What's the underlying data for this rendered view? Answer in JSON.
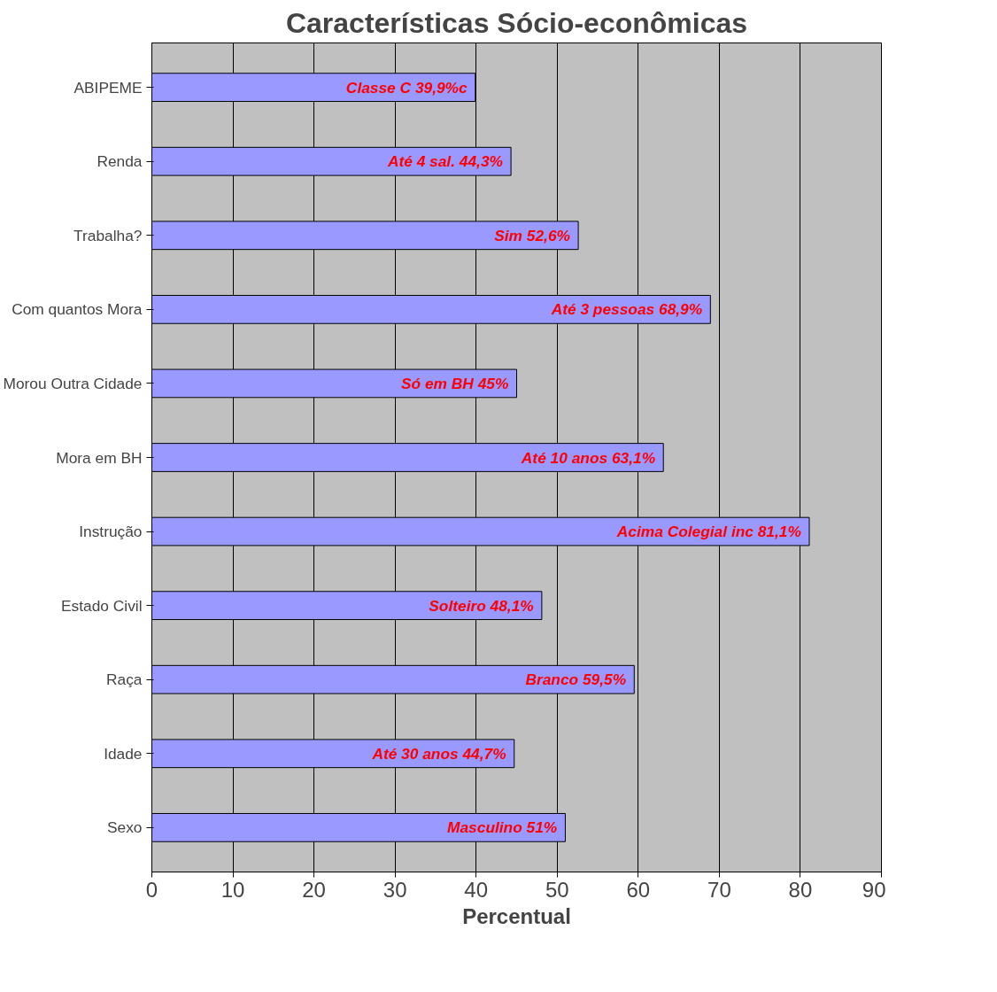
{
  "chart_data": {
    "type": "bar",
    "orientation": "horizontal",
    "title": "Características Sócio-econômicas",
    "xlabel": "Percentual",
    "categories": [
      "ABIPEME",
      "Renda",
      "Trabalha?",
      "Com quantos Mora",
      "Morou Outra Cidade",
      "Mora em BH",
      "Instrução",
      "Estado Civil",
      "Raça",
      "Idade",
      "Sexo"
    ],
    "values": [
      39.9,
      44.3,
      52.6,
      68.9,
      45,
      63.1,
      81.1,
      48.1,
      59.5,
      44.7,
      51
    ],
    "value_labels": [
      "Classe C 39,9%c",
      "Até 4 sal. 44,3%",
      "Sim 52,6%",
      "Até 3 pessoas 68,9%",
      "Só em BH 45%",
      "Até 10 anos 63,1%",
      "Acima Colegial inc 81,1%",
      "Solteiro 48,1%",
      "Branco 59,5%",
      "Até 30 anos 44,7%",
      "Masculino 51%"
    ],
    "color": "#9999ff",
    "xlim": [
      0,
      90
    ],
    "xticks": [
      0,
      10,
      20,
      30,
      40,
      50,
      60,
      70,
      80,
      90
    ],
    "grid": "x"
  }
}
